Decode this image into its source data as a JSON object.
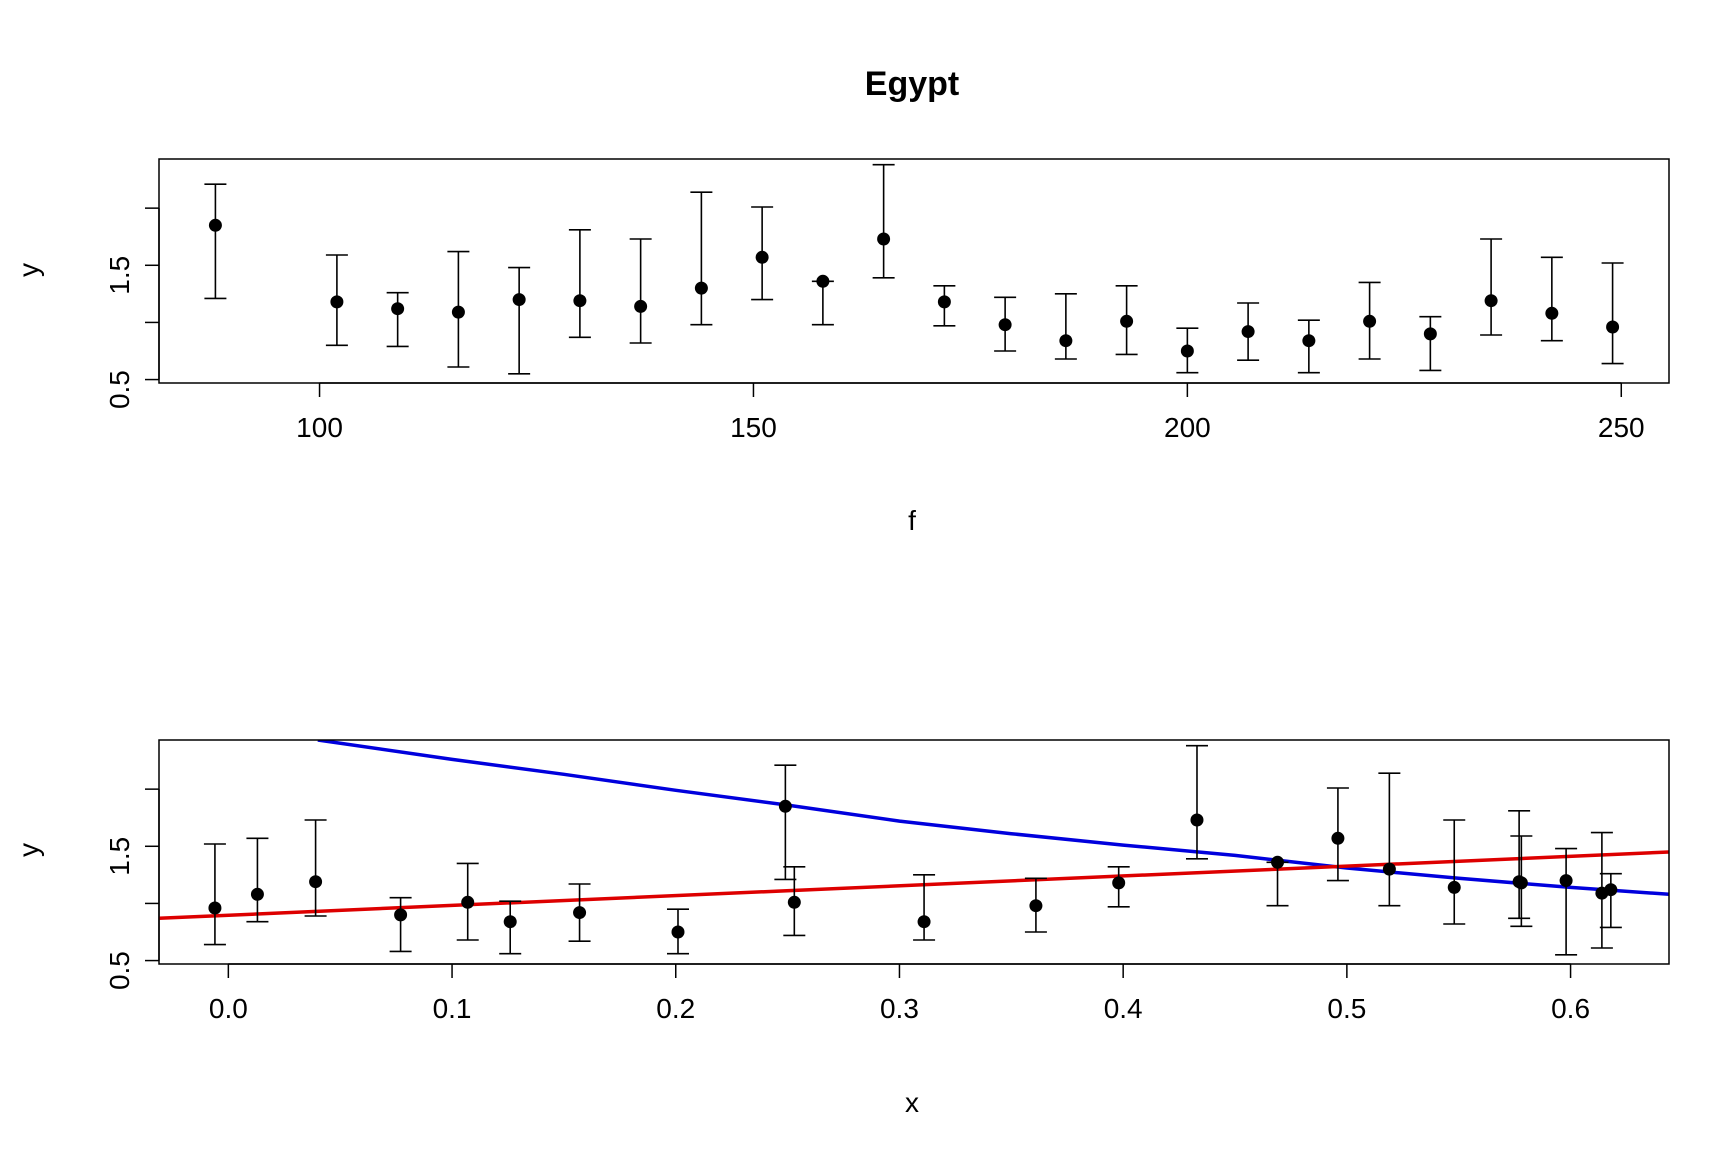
{
  "chart_data": [
    {
      "type": "scatter",
      "title": "Egypt",
      "xlabel": "f",
      "ylabel": "y",
      "xlim": [
        81.5,
        255.5
      ],
      "ylim": [
        0.47,
        2.43
      ],
      "xticks": [
        100,
        150,
        200,
        250
      ],
      "xtick_labels": [
        "100",
        "150",
        "200",
        "250"
      ],
      "yticks": [
        0.5,
        1.0,
        1.5,
        2.0
      ],
      "ytick_labels": [
        "0.5",
        "",
        "1.5",
        ""
      ],
      "grid": false,
      "legend": "none",
      "point_color": "#000000",
      "series": [
        {
          "x": [
            88,
            102,
            109,
            116,
            123,
            130,
            137,
            144,
            151,
            158,
            165,
            172,
            179,
            186,
            193,
            200,
            207,
            214,
            221,
            228,
            235,
            242,
            249
          ],
          "y": [
            1.85,
            1.18,
            1.12,
            1.09,
            1.2,
            1.19,
            1.14,
            1.3,
            1.57,
            1.36,
            1.73,
            1.18,
            0.98,
            0.84,
            1.01,
            0.75,
            0.92,
            0.84,
            1.01,
            0.9,
            1.19,
            1.08,
            0.96
          ],
          "ylo": [
            1.21,
            0.8,
            0.79,
            0.61,
            0.55,
            0.87,
            0.82,
            0.98,
            1.2,
            0.98,
            1.39,
            0.97,
            0.75,
            0.68,
            0.72,
            0.56,
            0.67,
            0.56,
            0.68,
            0.58,
            0.89,
            0.84,
            0.64
          ],
          "yhi": [
            2.21,
            1.59,
            1.26,
            1.62,
            1.48,
            1.81,
            1.73,
            2.14,
            2.01,
            1.36,
            2.38,
            1.32,
            1.22,
            1.25,
            1.32,
            0.95,
            1.17,
            1.02,
            1.35,
            1.05,
            1.73,
            1.57,
            1.52
          ]
        }
      ]
    },
    {
      "type": "scatter",
      "xlabel": "x",
      "ylabel": "y",
      "xlim": [
        -0.031,
        0.644
      ],
      "ylim": [
        0.47,
        2.43
      ],
      "xticks": [
        0.0,
        0.1,
        0.2,
        0.3,
        0.4,
        0.5,
        0.6
      ],
      "xtick_labels": [
        "0.0",
        "0.1",
        "0.2",
        "0.3",
        "0.4",
        "0.5",
        "0.6"
      ],
      "yticks": [
        0.5,
        1.0,
        1.5,
        2.0
      ],
      "ytick_labels": [
        "0.5",
        "",
        "1.5",
        ""
      ],
      "grid": false,
      "legend": "none",
      "point_color": "#000000",
      "series": [
        {
          "x": [
            -0.006,
            0.013,
            0.039,
            0.077,
            0.107,
            0.126,
            0.157,
            0.201,
            0.249,
            0.253,
            0.311,
            0.361,
            0.398,
            0.433,
            0.469,
            0.496,
            0.519,
            0.548,
            0.577,
            0.578,
            0.598,
            0.614,
            0.618
          ],
          "y": [
            0.96,
            1.08,
            1.19,
            0.9,
            1.01,
            0.84,
            0.92,
            0.75,
            1.85,
            1.01,
            0.84,
            0.98,
            1.18,
            1.73,
            1.36,
            1.57,
            1.3,
            1.14,
            1.19,
            1.18,
            1.2,
            1.09,
            1.12
          ],
          "ylo": [
            0.64,
            0.84,
            0.89,
            0.58,
            0.68,
            0.56,
            0.67,
            0.56,
            1.21,
            0.72,
            0.68,
            0.75,
            0.97,
            1.39,
            0.98,
            1.2,
            0.98,
            0.82,
            0.87,
            0.8,
            0.55,
            0.61,
            0.79
          ],
          "yhi": [
            1.52,
            1.57,
            1.73,
            1.05,
            1.35,
            1.02,
            1.17,
            0.95,
            2.21,
            1.32,
            1.25,
            1.22,
            1.32,
            2.38,
            1.36,
            2.01,
            2.14,
            1.73,
            1.81,
            1.59,
            1.48,
            1.62,
            1.26
          ]
        }
      ],
      "lines": [
        {
          "color": "#0000dd",
          "x": [
            0.04,
            0.1,
            0.15,
            0.2,
            0.25,
            0.3,
            0.35,
            0.4,
            0.45,
            0.5,
            0.55,
            0.6,
            0.644
          ],
          "y": [
            2.43,
            2.26,
            2.13,
            1.99,
            1.86,
            1.72,
            1.61,
            1.51,
            1.42,
            1.31,
            1.22,
            1.14,
            1.08
          ]
        },
        {
          "color": "#dd0000",
          "x": [
            -0.031,
            0.644
          ],
          "y": [
            0.87,
            1.45
          ]
        }
      ]
    }
  ]
}
